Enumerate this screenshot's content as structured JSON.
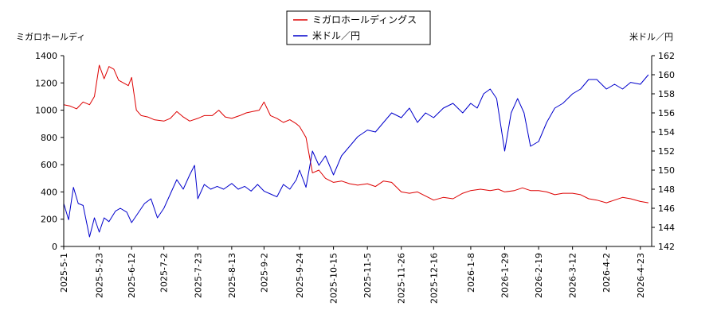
{
  "chart_data": {
    "type": "line",
    "legend": {
      "position": "top-center"
    },
    "grid": false,
    "left_axis": {
      "label": "ミガロホールディ",
      "range": [
        0,
        1400
      ],
      "ticks": [
        "0",
        "200",
        "400",
        "600",
        "800",
        "1000",
        "1200",
        "1400"
      ],
      "color": "#cc0000"
    },
    "right_axis": {
      "label": "米ドル／円",
      "range": [
        142,
        162
      ],
      "ticks": [
        "142",
        "144",
        "146",
        "148",
        "150",
        "152",
        "154",
        "156",
        "158",
        "160",
        "162"
      ],
      "color": "#0000cc"
    },
    "x_ticks": [
      "2025-5-1",
      "2025-5-23",
      "2025-6-12",
      "2025-7-2",
      "2025-7-23",
      "2025-8-13",
      "2025-9-2",
      "2025-9-24",
      "2025-10-15",
      "2025-11-5",
      "2025-11-26",
      "2025-12-16",
      "2026-1-8",
      "2026-1-29",
      "2026-2-19",
      "2026-3-12",
      "2026-4-2",
      "2026-4-23"
    ],
    "series": [
      {
        "name": "ミガロホールディングス",
        "color": "#dd0000",
        "axis": "left",
        "x": [
          "2025-5-1",
          "2025-5-5",
          "2025-5-9",
          "2025-5-13",
          "2025-5-17",
          "2025-5-20",
          "2025-5-23",
          "2025-5-26",
          "2025-5-29",
          "2025-6-1",
          "2025-6-4",
          "2025-6-7",
          "2025-6-10",
          "2025-6-12",
          "2025-6-15",
          "2025-6-18",
          "2025-6-22",
          "2025-6-26",
          "2025-7-2",
          "2025-7-6",
          "2025-7-10",
          "2025-7-14",
          "2025-7-18",
          "2025-7-23",
          "2025-7-27",
          "2025-8-1",
          "2025-8-5",
          "2025-8-9",
          "2025-8-13",
          "2025-8-18",
          "2025-8-22",
          "2025-8-26",
          "2025-8-30",
          "2025-9-2",
          "2025-9-6",
          "2025-9-10",
          "2025-9-14",
          "2025-9-18",
          "2025-9-22",
          "2025-9-24",
          "2025-9-28",
          "2025-10-2",
          "2025-10-6",
          "2025-10-10",
          "2025-10-15",
          "2025-10-20",
          "2025-10-25",
          "2025-10-30",
          "2025-11-5",
          "2025-11-10",
          "2025-11-15",
          "2025-11-20",
          "2025-11-26",
          "2025-12-1",
          "2025-12-6",
          "2025-12-11",
          "2025-12-16",
          "2025-12-22",
          "2025-12-28",
          "2026-1-3",
          "2026-1-8",
          "2026-1-14",
          "2026-1-20",
          "2026-1-25",
          "2026-1-29",
          "2026-2-4",
          "2026-2-9",
          "2026-2-14",
          "2026-2-19",
          "2026-2-24",
          "2026-3-1",
          "2026-3-6",
          "2026-3-12",
          "2026-3-17",
          "2026-3-22",
          "2026-3-27",
          "2026-4-2",
          "2026-4-7",
          "2026-4-12",
          "2026-4-17",
          "2026-4-23",
          "2026-4-28"
        ],
        "values": [
          1040,
          1030,
          1010,
          1060,
          1040,
          1100,
          1330,
          1230,
          1320,
          1300,
          1220,
          1200,
          1180,
          1240,
          1000,
          960,
          950,
          930,
          920,
          940,
          990,
          950,
          920,
          940,
          960,
          960,
          1000,
          950,
          940,
          960,
          980,
          990,
          1000,
          1060,
          960,
          940,
          910,
          930,
          900,
          880,
          800,
          540,
          560,
          500,
          470,
          480,
          460,
          450,
          460,
          440,
          480,
          470,
          400,
          390,
          400,
          370,
          340,
          360,
          350,
          390,
          410,
          420,
          410,
          420,
          400,
          410,
          430,
          410,
          410,
          400,
          380,
          390,
          390,
          380,
          350,
          340,
          320,
          340,
          360,
          350,
          330,
          320
        ]
      },
      {
        "name": "米ドル／円",
        "color": "#0000cc",
        "axis": "right",
        "x": [
          "2025-5-1",
          "2025-5-4",
          "2025-5-7",
          "2025-5-10",
          "2025-5-13",
          "2025-5-17",
          "2025-5-20",
          "2025-5-23",
          "2025-5-26",
          "2025-5-29",
          "2025-6-2",
          "2025-6-5",
          "2025-6-9",
          "2025-6-12",
          "2025-6-16",
          "2025-6-20",
          "2025-6-24",
          "2025-6-28",
          "2025-7-2",
          "2025-7-6",
          "2025-7-10",
          "2025-7-14",
          "2025-7-18",
          "2025-7-21",
          "2025-7-23",
          "2025-7-27",
          "2025-7-31",
          "2025-8-4",
          "2025-8-8",
          "2025-8-13",
          "2025-8-17",
          "2025-8-21",
          "2025-8-25",
          "2025-8-29",
          "2025-9-2",
          "2025-9-6",
          "2025-9-10",
          "2025-9-14",
          "2025-9-18",
          "2025-9-22",
          "2025-9-24",
          "2025-9-28",
          "2025-10-2",
          "2025-10-6",
          "2025-10-10",
          "2025-10-15",
          "2025-10-20",
          "2025-10-25",
          "2025-10-30",
          "2025-11-5",
          "2025-11-10",
          "2025-11-15",
          "2025-11-20",
          "2025-11-26",
          "2025-12-1",
          "2025-12-6",
          "2025-12-11",
          "2025-12-16",
          "2025-12-22",
          "2025-12-28",
          "2026-1-3",
          "2026-1-8",
          "2026-1-12",
          "2026-1-16",
          "2026-1-20",
          "2026-1-24",
          "2026-1-29",
          "2026-2-2",
          "2026-2-6",
          "2026-2-10",
          "2026-2-14",
          "2026-2-19",
          "2026-2-24",
          "2026-3-1",
          "2026-3-6",
          "2026-3-12",
          "2026-3-17",
          "2026-3-22",
          "2026-3-27",
          "2026-4-2",
          "2026-4-7",
          "2026-4-12",
          "2026-4-17",
          "2026-4-23",
          "2026-4-28"
        ],
        "values": [
          146.5,
          144.8,
          148.2,
          146.5,
          146.3,
          143.0,
          145.0,
          143.5,
          145.0,
          144.6,
          145.7,
          146.0,
          145.6,
          144.5,
          145.5,
          146.5,
          147.0,
          145.0,
          146.0,
          147.5,
          149.0,
          148.0,
          149.5,
          150.5,
          147.0,
          148.5,
          148.0,
          148.3,
          148.0,
          148.6,
          148.0,
          148.3,
          147.8,
          148.5,
          147.8,
          147.5,
          147.2,
          148.5,
          148.0,
          149.0,
          150.0,
          148.2,
          152.0,
          150.5,
          151.5,
          149.5,
          151.5,
          152.5,
          153.5,
          154.2,
          154.0,
          155.0,
          156.0,
          155.5,
          156.5,
          155.0,
          156.0,
          155.5,
          156.5,
          157.0,
          156.0,
          157.0,
          156.5,
          158.0,
          158.5,
          157.5,
          152.0,
          156.0,
          157.5,
          156.0,
          152.5,
          153.0,
          155.0,
          156.5,
          157.0,
          158.0,
          158.5,
          159.5,
          159.5,
          158.5,
          159.0,
          158.5,
          159.2,
          159.0,
          160.0
        ]
      }
    ]
  }
}
